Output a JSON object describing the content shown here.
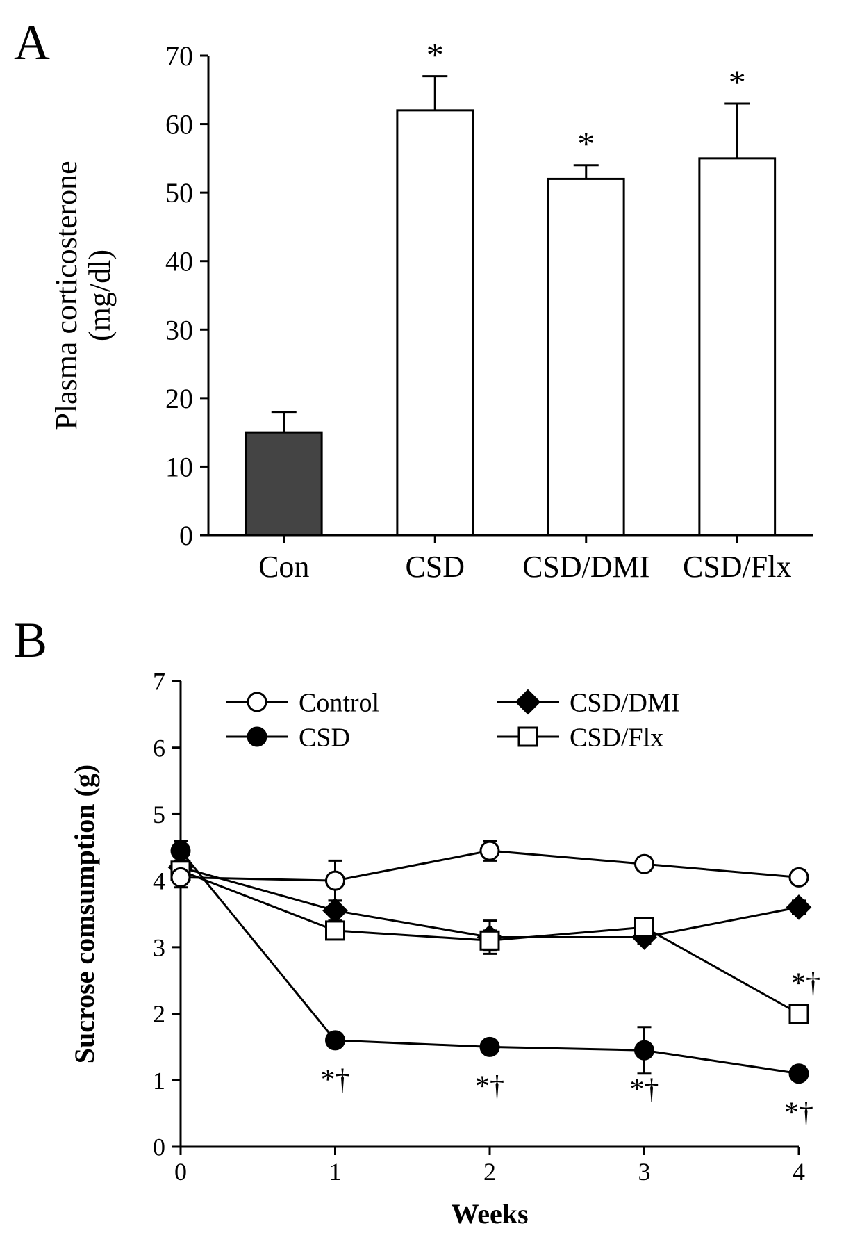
{
  "panelA": {
    "label": "A",
    "type": "bar",
    "ylabel_line1": "Plasma corticosterone",
    "ylabel_line2": "(mg/dl)",
    "ylim": [
      0,
      70
    ],
    "ytick_step": 10,
    "bars": [
      {
        "name": "Con",
        "value": 15,
        "err": 3,
        "fill": "#444444",
        "sig": ""
      },
      {
        "name": "CSD",
        "value": 62,
        "err": 5,
        "fill": "#ffffff",
        "sig": "*"
      },
      {
        "name": "CSD/DMI",
        "value": 52,
        "err": 2,
        "fill": "#ffffff",
        "sig": "*"
      },
      {
        "name": "CSD/Flx",
        "value": 55,
        "err": 8,
        "fill": "#ffffff",
        "sig": "*"
      }
    ],
    "axis_color": "#000000",
    "label_fontsize": 44,
    "tick_fontsize": 40,
    "sig_fontsize": 50,
    "bar_width": 0.5,
    "stroke_width": 3
  },
  "panelB": {
    "label": "B",
    "type": "line",
    "ylabel": "Sucrose comsumption (g)",
    "xlabel": "Weeks",
    "xlim": [
      0,
      4
    ],
    "ylim": [
      0,
      7
    ],
    "xtick_step": 1,
    "ytick_step": 1,
    "legend": [
      {
        "key": "Control",
        "marker": "open-circle"
      },
      {
        "key": "CSD/DMI",
        "marker": "filled-diamond"
      },
      {
        "key": "CSD",
        "marker": "filled-circle"
      },
      {
        "key": "CSD/Flx",
        "marker": "open-square"
      }
    ],
    "series": {
      "Control": {
        "marker": "open-circle",
        "points": [
          {
            "x": 0,
            "y": 4.05,
            "err": 0.15
          },
          {
            "x": 1,
            "y": 4.0,
            "err": 0.3
          },
          {
            "x": 2,
            "y": 4.45,
            "err": 0.15
          },
          {
            "x": 3,
            "y": 4.25,
            "err": 0.1
          },
          {
            "x": 4,
            "y": 4.05,
            "err": 0.1
          }
        ],
        "sig": []
      },
      "CSD": {
        "marker": "filled-circle",
        "points": [
          {
            "x": 0,
            "y": 4.45,
            "err": 0.15
          },
          {
            "x": 1,
            "y": 1.6,
            "err": 0.1
          },
          {
            "x": 2,
            "y": 1.5,
            "err": 0.1
          },
          {
            "x": 3,
            "y": 1.45,
            "err": 0.35
          },
          {
            "x": 4,
            "y": 1.1,
            "err": 0.1
          }
        ],
        "sig": [
          {
            "x": 1,
            "label": "*†"
          },
          {
            "x": 2,
            "label": "*†"
          },
          {
            "x": 3,
            "label": "*†"
          },
          {
            "x": 4,
            "label": "*†"
          }
        ]
      },
      "CSD/DMI": {
        "marker": "filled-diamond",
        "points": [
          {
            "x": 0,
            "y": 4.2,
            "err": 0.15
          },
          {
            "x": 1,
            "y": 3.55,
            "err": 0.15
          },
          {
            "x": 2,
            "y": 3.15,
            "err": 0.25
          },
          {
            "x": 3,
            "y": 3.15,
            "err": 0.1
          },
          {
            "x": 4,
            "y": 3.6,
            "err": 0.1
          }
        ],
        "sig": []
      },
      "CSD/Flx": {
        "marker": "open-square",
        "points": [
          {
            "x": 0,
            "y": 4.15,
            "err": 0.15
          },
          {
            "x": 1,
            "y": 3.25,
            "err": 0.1
          },
          {
            "x": 2,
            "y": 3.1,
            "err": 0.15
          },
          {
            "x": 3,
            "y": 3.3,
            "err": 0.1
          },
          {
            "x": 4,
            "y": 2.0,
            "err": 0.1
          }
        ],
        "sig": [
          {
            "x": 4,
            "label": "*†"
          }
        ]
      }
    },
    "axis_color": "#000000",
    "label_fontsize": 40,
    "tick_fontsize": 36,
    "legend_fontsize": 38,
    "sig_fontsize": 42,
    "stroke_width": 3,
    "marker_size": 13
  }
}
